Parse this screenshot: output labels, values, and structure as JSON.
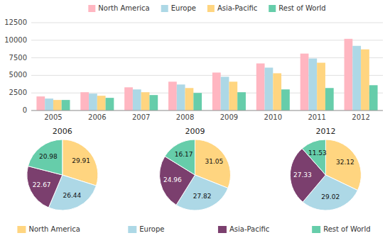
{
  "chart_data": [
    {
      "type": "bar",
      "categories": [
        "2005",
        "2006",
        "2007",
        "2008",
        "2009",
        "2010",
        "2011",
        "2012"
      ],
      "series": [
        {
          "name": "North America",
          "color": "#FFB6C1",
          "values": [
            2000,
            2600,
            3300,
            4100,
            5400,
            6700,
            8100,
            10200
          ]
        },
        {
          "name": "Europe",
          "color": "#ADD8E6",
          "values": [
            1700,
            2400,
            3000,
            3700,
            4800,
            6100,
            7400,
            9200
          ]
        },
        {
          "name": "Asia-Pacific",
          "color": "#FFD580",
          "values": [
            1500,
            2100,
            2600,
            3200,
            4100,
            5300,
            6800,
            8700
          ]
        },
        {
          "name": "Rest of World",
          "color": "#66CDAA",
          "values": [
            1500,
            1800,
            2200,
            2500,
            2600,
            3000,
            3200,
            3600
          ]
        }
      ],
      "ylim": [
        0,
        12500
      ],
      "yticks": [
        0,
        2500,
        5000,
        7500,
        10000,
        12500
      ],
      "grid": true,
      "legend": "top"
    },
    {
      "type": "pie",
      "title": "2006",
      "categories": [
        "North America",
        "Europe",
        "Asia-Pacific",
        "Rest of World"
      ],
      "values": [
        29.91,
        26.44,
        22.67,
        20.98
      ],
      "colors": [
        "#FFD580",
        "#ADD8E6",
        "#7B3F6E",
        "#66CDAA"
      ],
      "data_labels": true,
      "legend": "bottom"
    },
    {
      "type": "pie",
      "title": "2009",
      "values": [
        31.05,
        27.82,
        24.96,
        16.17
      ],
      "colors": [
        "#FFD580",
        "#ADD8E6",
        "#7B3F6E",
        "#66CDAA"
      ],
      "data_labels": true
    },
    {
      "type": "pie",
      "title": "2012",
      "values": [
        32.12,
        29.02,
        27.33,
        11.53
      ],
      "colors": [
        "#FFD580",
        "#ADD8E6",
        "#7B3F6E",
        "#66CDAA"
      ],
      "data_labels": true
    }
  ]
}
